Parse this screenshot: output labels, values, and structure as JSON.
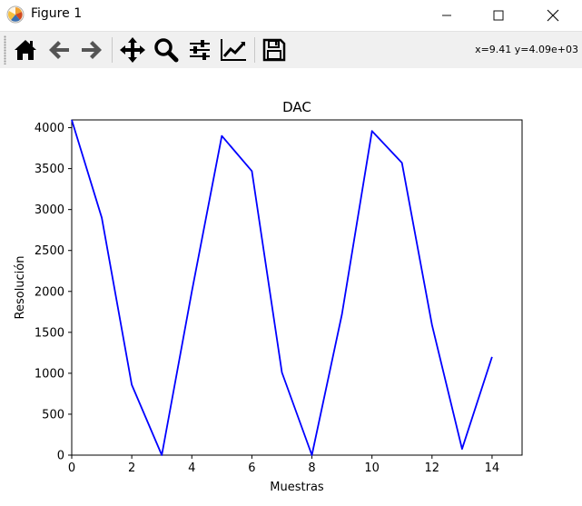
{
  "window": {
    "title": "Figure 1",
    "icons": [
      "matplotlib-icon",
      "minimize-icon",
      "maximize-icon",
      "close-icon"
    ]
  },
  "toolbar": {
    "buttons": [
      {
        "name": "home-icon"
      },
      {
        "name": "back-arrow-icon"
      },
      {
        "name": "forward-arrow-icon"
      },
      {
        "name": "pan-icon"
      },
      {
        "name": "zoom-icon"
      },
      {
        "name": "configure-subplots-icon"
      },
      {
        "name": "edit-axis-icon"
      },
      {
        "name": "save-icon"
      }
    ],
    "coords_readout": "x=9.41 y=4.09e+03"
  },
  "chart_data": {
    "type": "line",
    "title": "DAC",
    "xlabel": "Muestras",
    "ylabel": "Resolución",
    "xlim": [
      0,
      15
    ],
    "ylim": [
      0,
      4095
    ],
    "xticks": [
      0,
      2,
      4,
      6,
      8,
      10,
      12,
      14
    ],
    "yticks": [
      0,
      500,
      1000,
      1500,
      2000,
      2500,
      3000,
      3500,
      4000
    ],
    "grid": false,
    "series": [
      {
        "color": "#0000ff",
        "x": [
          0,
          1,
          2,
          3,
          4,
          5,
          6,
          7,
          8,
          9,
          10,
          11,
          12,
          13,
          14
        ],
        "values": [
          4095,
          2900,
          860,
          0,
          2000,
          3900,
          3470,
          1010,
          0,
          1720,
          3960,
          3570,
          1590,
          75,
          1200
        ]
      }
    ]
  }
}
